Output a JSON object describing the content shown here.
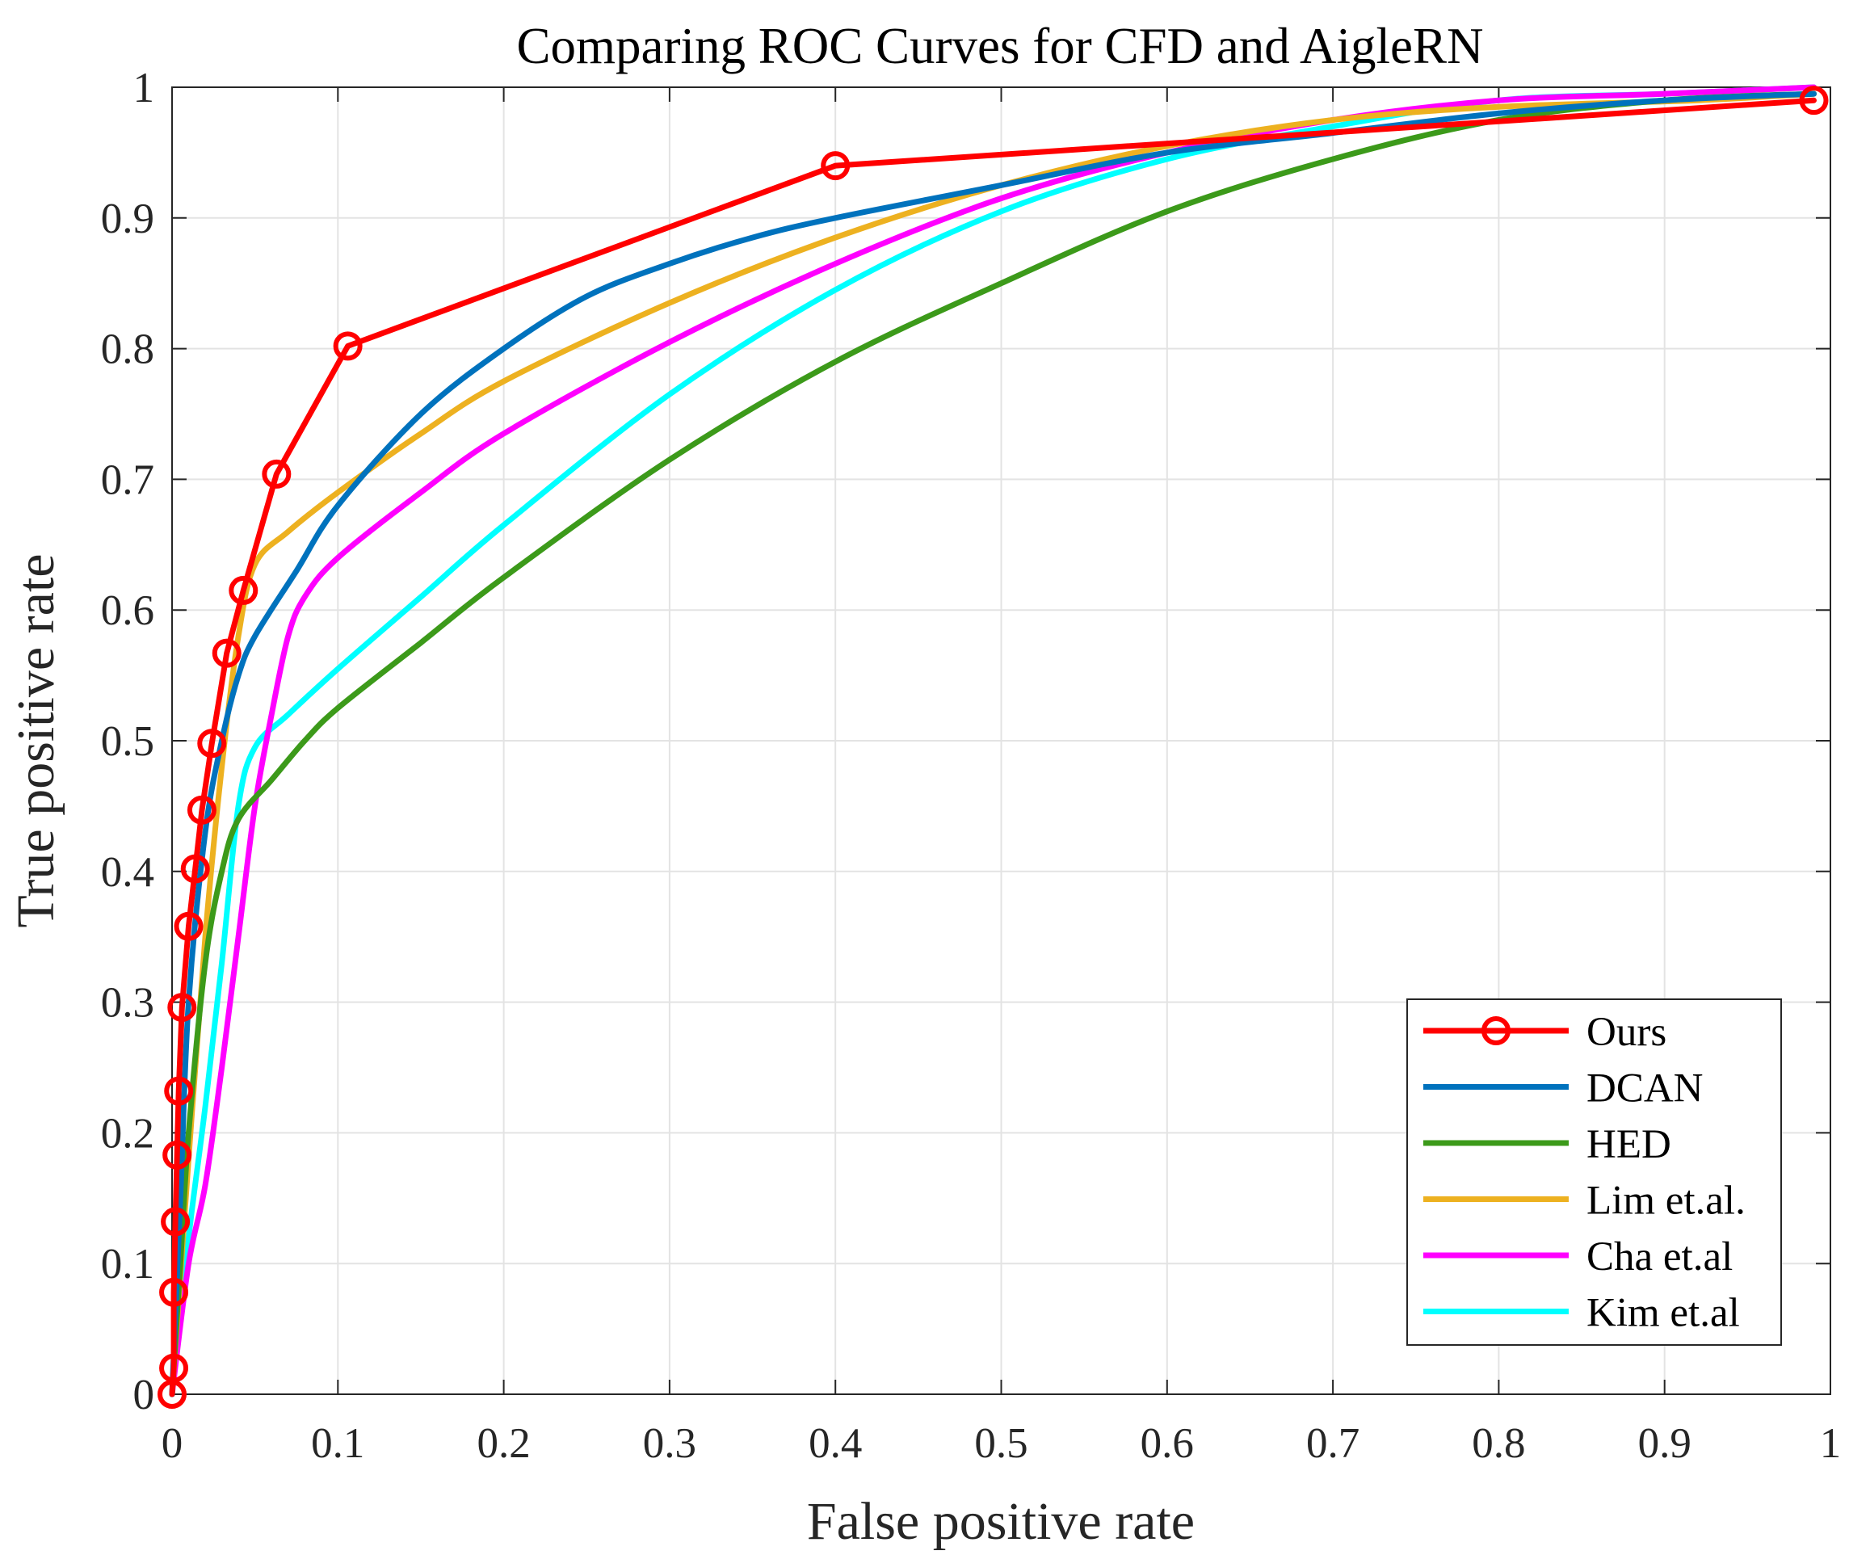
{
  "chart_data": {
    "type": "line",
    "title": "Comparing ROC Curves for CFD and AigleRN",
    "xlabel": "False positive rate",
    "ylabel": "True positive rate",
    "xlim": [
      0,
      1
    ],
    "ylim": [
      0,
      1
    ],
    "grid": true,
    "legend_position": "bottom-right",
    "x_ticks": [
      "0",
      "0.1",
      "0.2",
      "0.3",
      "0.4",
      "0.5",
      "0.6",
      "0.7",
      "0.8",
      "0.9",
      "1"
    ],
    "y_ticks": [
      "0",
      "0.1",
      "0.2",
      "0.3",
      "0.4",
      "0.5",
      "0.6",
      "0.7",
      "0.8",
      "0.9",
      "1"
    ],
    "series": [
      {
        "name": "Ours",
        "color": "#FF0000",
        "marker": "circle",
        "x": [
          0,
          0.001,
          0.001,
          0.002,
          0.003,
          0.004,
          0.006,
          0.01,
          0.014,
          0.018,
          0.024,
          0.033,
          0.043,
          0.063,
          0.106,
          0.4,
          0.99
        ],
        "y": [
          0,
          0.02,
          0.078,
          0.132,
          0.183,
          0.232,
          0.296,
          0.358,
          0.402,
          0.447,
          0.498,
          0.567,
          0.615,
          0.704,
          0.802,
          0.94,
          0.99
        ]
      },
      {
        "name": "DCAN",
        "color": "#0072BD",
        "x": [
          0,
          0.005,
          0.01,
          0.02,
          0.03,
          0.04,
          0.05,
          0.075,
          0.1,
          0.15,
          0.2,
          0.25,
          0.3,
          0.35,
          0.4,
          0.5,
          0.6,
          0.7,
          0.8,
          0.9,
          0.99
        ],
        "y": [
          0,
          0.15,
          0.3,
          0.43,
          0.5,
          0.55,
          0.58,
          0.63,
          0.68,
          0.75,
          0.8,
          0.84,
          0.865,
          0.885,
          0.9,
          0.925,
          0.95,
          0.965,
          0.98,
          0.99,
          0.995
        ]
      },
      {
        "name": "HED",
        "color": "#3C9A1A",
        "x": [
          0,
          0.005,
          0.01,
          0.02,
          0.03,
          0.04,
          0.06,
          0.08,
          0.1,
          0.15,
          0.2,
          0.3,
          0.4,
          0.5,
          0.6,
          0.7,
          0.8,
          0.9,
          0.99
        ],
        "y": [
          0,
          0.1,
          0.2,
          0.33,
          0.4,
          0.44,
          0.47,
          0.5,
          0.525,
          0.575,
          0.625,
          0.715,
          0.79,
          0.85,
          0.905,
          0.945,
          0.975,
          0.99,
          0.995
        ]
      },
      {
        "name": "Lim et.al.",
        "color": "#EDB120",
        "x": [
          0,
          0.01,
          0.02,
          0.03,
          0.04,
          0.05,
          0.07,
          0.1,
          0.15,
          0.2,
          0.3,
          0.4,
          0.5,
          0.6,
          0.7,
          0.8,
          0.92,
          0.99
        ],
        "y": [
          0,
          0.18,
          0.35,
          0.48,
          0.58,
          0.635,
          0.66,
          0.69,
          0.735,
          0.775,
          0.835,
          0.885,
          0.925,
          0.955,
          0.975,
          0.985,
          0.99,
          0.995
        ]
      },
      {
        "name": "Cha et.al",
        "color": "#FF00FF",
        "x": [
          0,
          0.01,
          0.02,
          0.03,
          0.04,
          0.05,
          0.06,
          0.07,
          0.08,
          0.1,
          0.15,
          0.2,
          0.3,
          0.4,
          0.5,
          0.6,
          0.7,
          0.8,
          0.9,
          0.99
        ],
        "y": [
          0,
          0.1,
          0.16,
          0.25,
          0.35,
          0.45,
          0.52,
          0.58,
          0.61,
          0.64,
          0.69,
          0.735,
          0.805,
          0.865,
          0.915,
          0.95,
          0.975,
          0.99,
          0.995,
          1.0
        ]
      },
      {
        "name": "Kim et.al",
        "color": "#00FFFF",
        "x": [
          0,
          0.01,
          0.02,
          0.03,
          0.04,
          0.05,
          0.07,
          0.1,
          0.15,
          0.2,
          0.3,
          0.4,
          0.5,
          0.6,
          0.7,
          0.8,
          0.9,
          0.99
        ],
        "y": [
          0,
          0.12,
          0.22,
          0.33,
          0.45,
          0.495,
          0.52,
          0.555,
          0.61,
          0.665,
          0.765,
          0.845,
          0.905,
          0.945,
          0.97,
          0.99,
          0.995,
          1.0
        ]
      }
    ]
  }
}
